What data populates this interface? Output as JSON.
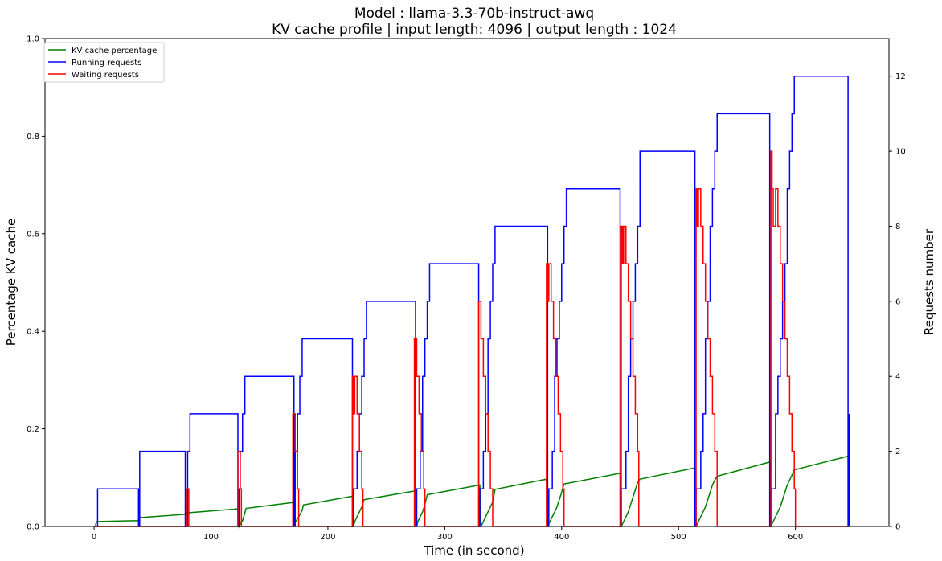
{
  "chart_data": {
    "type": "line",
    "title": "Model : llama-3.3-70b-instruct-awq",
    "subtitle": "KV cache profile | input length: 4096 | output length : 1024",
    "xlabel": "Time (in second)",
    "ylabel": "Percentage KV cache",
    "y2label": "Requests number",
    "xlim": [
      -42,
      680
    ],
    "ylim": [
      0,
      1.0
    ],
    "y2lim": [
      0,
      13
    ],
    "xticks": [
      "0",
      "100",
      "200",
      "300",
      "400",
      "500",
      "600"
    ],
    "yticks": [
      "0.0",
      "0.2",
      "0.4",
      "0.6",
      "0.8",
      "1.0"
    ],
    "y2ticks": [
      "0",
      "2",
      "4",
      "6",
      "8",
      "10",
      "12"
    ],
    "legend_position": "upper-left",
    "grid": false,
    "series": [
      {
        "name": "KV cache percentage",
        "axis": "left",
        "color": "#008000",
        "x": [
          1,
          2,
          38,
          38.1,
          79,
          80,
          123,
          124,
          125,
          127,
          128,
          129,
          130,
          170,
          171,
          172,
          174,
          176,
          178,
          179,
          221,
          222,
          223,
          225,
          227,
          229,
          231,
          275,
          276,
          277,
          279,
          281,
          283,
          285,
          330,
          331,
          333,
          335,
          337,
          339,
          341,
          343,
          387,
          388,
          390,
          392,
          394,
          396,
          398,
          400,
          402,
          450,
          451,
          453,
          455,
          457,
          459,
          461,
          463,
          465,
          467,
          514,
          515,
          517,
          519,
          521,
          523,
          525,
          527,
          529,
          531,
          533,
          578,
          579,
          581,
          583,
          585,
          587,
          589,
          591,
          593,
          595,
          597,
          599,
          645,
          646
        ],
        "values": [
          0.0,
          0.01,
          0.012,
          0.018,
          0.025,
          0.028,
          0.036,
          0.0,
          0.005,
          0.012,
          0.02,
          0.028,
          0.037,
          0.049,
          0.0,
          0.008,
          0.016,
          0.024,
          0.033,
          0.044,
          0.062,
          0.0,
          0.01,
          0.02,
          0.03,
          0.04,
          0.055,
          0.073,
          0.0,
          0.01,
          0.02,
          0.03,
          0.045,
          0.065,
          0.085,
          0.0,
          0.01,
          0.02,
          0.03,
          0.04,
          0.05,
          0.076,
          0.097,
          0.0,
          0.01,
          0.02,
          0.03,
          0.04,
          0.055,
          0.07,
          0.087,
          0.109,
          0.0,
          0.01,
          0.02,
          0.03,
          0.045,
          0.06,
          0.075,
          0.09,
          0.097,
          0.12,
          0.0,
          0.01,
          0.02,
          0.03,
          0.04,
          0.055,
          0.07,
          0.085,
          0.095,
          0.103,
          0.132,
          0.0,
          0.01,
          0.02,
          0.03,
          0.04,
          0.055,
          0.07,
          0.085,
          0.095,
          0.105,
          0.116,
          0.144,
          0.0
        ]
      },
      {
        "name": "Running requests",
        "axis": "right",
        "color": "#0000ff",
        "x": [
          1,
          3,
          38,
          39,
          78,
          80,
          82,
          123,
          124,
          125,
          127,
          129,
          131,
          171,
          172,
          174,
          176,
          178,
          180,
          221,
          222,
          225,
          227,
          229,
          231,
          233,
          275,
          276,
          279,
          281,
          283,
          285,
          287,
          329,
          330,
          333,
          335,
          337,
          339,
          341,
          343,
          388,
          389,
          392,
          394,
          396,
          398,
          400,
          402,
          404,
          450,
          451,
          455,
          457,
          459,
          461,
          463,
          465,
          467,
          514,
          515,
          519,
          521,
          523,
          525,
          527,
          529,
          531,
          533,
          578,
          579,
          583,
          585,
          587,
          589,
          591,
          593,
          595,
          597,
          599,
          645,
          646
        ],
        "values": [
          0,
          1,
          0,
          2,
          0,
          2,
          3,
          0,
          1,
          2,
          3,
          4,
          4,
          0,
          2,
          3,
          4,
          5,
          5,
          0,
          1,
          2,
          3,
          4,
          5,
          6,
          0,
          1,
          2,
          4,
          5,
          6,
          7,
          0,
          1,
          2,
          3,
          5,
          6,
          7,
          8,
          0,
          1,
          2,
          4,
          5,
          6,
          7,
          8,
          9,
          0,
          1,
          2,
          4,
          5,
          6,
          7,
          8,
          10,
          0,
          1,
          2,
          3,
          5,
          6,
          8,
          9,
          10,
          11,
          0,
          1,
          3,
          4,
          5,
          6,
          7,
          9,
          10,
          11,
          12,
          0,
          3
        ]
      },
      {
        "name": "Waiting requests",
        "axis": "right",
        "color": "#ff0000",
        "x": [
          1,
          78,
          79,
          81,
          82,
          122,
          123,
          125,
          126,
          169,
          170,
          172,
          174,
          175,
          220,
          221,
          222,
          223,
          225,
          227,
          229,
          230,
          273,
          274,
          276,
          278,
          280,
          282,
          283,
          328,
          329,
          331,
          333,
          335,
          337,
          339,
          341,
          386,
          387,
          388,
          389,
          391,
          393,
          395,
          397,
          399,
          401,
          402,
          450,
          451,
          452,
          453,
          455,
          457,
          459,
          461,
          463,
          465,
          466,
          514,
          515,
          516,
          517,
          519,
          521,
          523,
          525,
          527,
          529,
          531,
          533,
          578,
          579,
          580,
          581,
          583,
          585,
          587,
          589,
          591,
          593,
          595,
          597,
          599,
          600,
          645
        ],
        "values": [
          0,
          0,
          1,
          0,
          0,
          0,
          2,
          1,
          0,
          0,
          3,
          2,
          1,
          0,
          0,
          4,
          3,
          4,
          3,
          2,
          1,
          0,
          0,
          5,
          4,
          3,
          2,
          1,
          0,
          0,
          6,
          5,
          4,
          3,
          2,
          1,
          0,
          0,
          7,
          6,
          7,
          6,
          5,
          4,
          3,
          2,
          1,
          0,
          0,
          8,
          7,
          8,
          7,
          6,
          5,
          4,
          3,
          2,
          0,
          0,
          9,
          8,
          9,
          8,
          7,
          6,
          5,
          4,
          3,
          2,
          0,
          0,
          10,
          9,
          8,
          9,
          8,
          7,
          6,
          5,
          4,
          3,
          2,
          1,
          0,
          0
        ]
      }
    ]
  }
}
